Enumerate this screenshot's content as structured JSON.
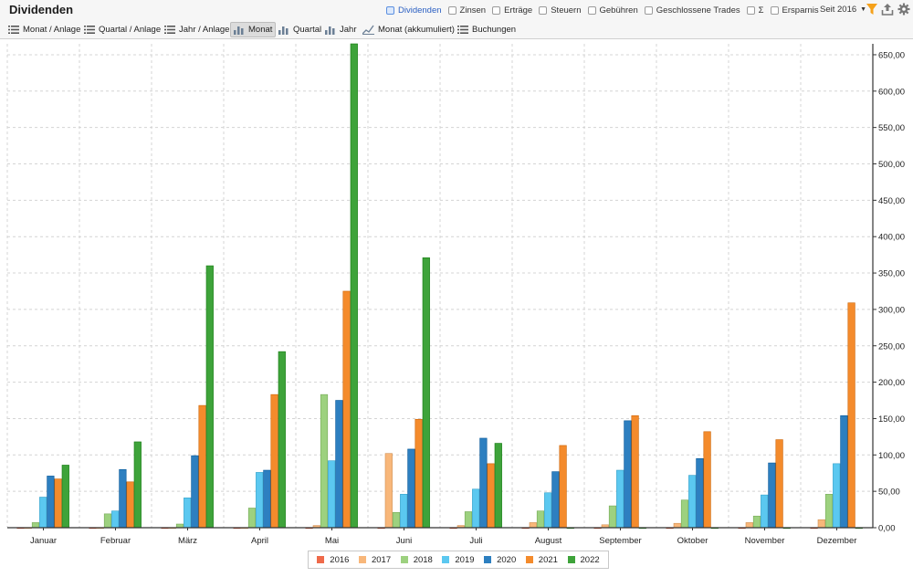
{
  "header": {
    "title": "Dividenden",
    "toggles": [
      {
        "label": "Dividenden",
        "active": true
      },
      {
        "label": "Zinsen",
        "active": false
      },
      {
        "label": "Erträge",
        "active": false
      },
      {
        "label": "Steuern",
        "active": false
      },
      {
        "label": "Gebühren",
        "active": false
      },
      {
        "label": "Geschlossene Trades",
        "active": false
      },
      {
        "label": "Σ",
        "active": false
      },
      {
        "label": "Ersparnis",
        "active": false
      }
    ],
    "since_label": "Seit 2016",
    "icons": [
      "filter-icon",
      "export-icon",
      "settings-gear-icon"
    ],
    "accent_color": "#f5a11a"
  },
  "tabs": [
    {
      "label": "Monat / Anlage",
      "icon": "list-icon",
      "active": false
    },
    {
      "label": "Quartal / Anlage",
      "icon": "list-icon",
      "active": false
    },
    {
      "label": "Jahr / Anlage",
      "icon": "list-icon",
      "active": false
    },
    {
      "label": "Monat",
      "icon": "bar-chart-icon",
      "active": true
    },
    {
      "label": "Quartal",
      "icon": "bar-chart-icon",
      "active": false
    },
    {
      "label": "Jahr",
      "icon": "bar-chart-icon",
      "active": false
    },
    {
      "label": "Monat (akkumuliert)",
      "icon": "line-chart-icon",
      "active": false
    },
    {
      "label": "Buchungen",
      "icon": "list-icon",
      "active": false
    }
  ],
  "chart_data": {
    "type": "bar",
    "title": "",
    "xlabel": "",
    "ylabel": "",
    "ylim": [
      0,
      665
    ],
    "y_ticks": [
      "0,00",
      "50,00",
      "100,00",
      "150,00",
      "200,00",
      "250,00",
      "300,00",
      "350,00",
      "400,00",
      "450,00",
      "500,00",
      "550,00",
      "600,00",
      "650,00"
    ],
    "y_tick_values": [
      0,
      50,
      100,
      150,
      200,
      250,
      300,
      350,
      400,
      450,
      500,
      550,
      600,
      650
    ],
    "y_axis_side": "right",
    "grid": true,
    "legend_position": "bottom",
    "categories": [
      "Januar",
      "Februar",
      "März",
      "April",
      "Mai",
      "Juni",
      "Juli",
      "August",
      "September",
      "Oktober",
      "November",
      "Dezember"
    ],
    "series": [
      {
        "name": "2016",
        "color": "#ef6a4a",
        "values": [
          0,
          0,
          0,
          0,
          0,
          0,
          0,
          0,
          0,
          0,
          0,
          0
        ]
      },
      {
        "name": "2017",
        "color": "#f8b77a",
        "values": [
          0,
          0,
          0,
          0,
          3,
          102,
          3,
          7,
          4,
          6,
          7,
          11
        ]
      },
      {
        "name": "2018",
        "color": "#9dd17f",
        "values": [
          7,
          19,
          5,
          27,
          183,
          21,
          22,
          23,
          30,
          38,
          16,
          46
        ]
      },
      {
        "name": "2019",
        "color": "#5bc8f0",
        "values": [
          42,
          23,
          41,
          76,
          92,
          46,
          53,
          48,
          79,
          72,
          45,
          88
        ]
      },
      {
        "name": "2020",
        "color": "#2d7fc0",
        "values": [
          71,
          80,
          99,
          79,
          175,
          108,
          123,
          77,
          147,
          95,
          89,
          154
        ]
      },
      {
        "name": "2021",
        "color": "#f48b2c",
        "values": [
          67,
          63,
          168,
          183,
          325,
          149,
          88,
          113,
          154,
          132,
          121,
          309
        ]
      },
      {
        "name": "2022",
        "color": "#3ea33a",
        "values": [
          86,
          118,
          360,
          242,
          665,
          371,
          116,
          0,
          0,
          0,
          0,
          0
        ]
      }
    ]
  }
}
